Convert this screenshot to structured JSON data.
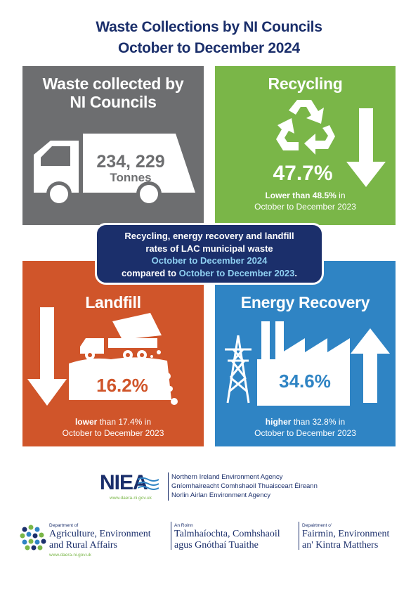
{
  "title": {
    "line1": "Waste Collections by NI Councils",
    "line2": "October to December 2024"
  },
  "colors": {
    "navy": "#1b2f6b",
    "waste": "#6d6e70",
    "recycling": "#7ab648",
    "landfill": "#d0552a",
    "energy": "#2f84c4"
  },
  "waste_tile": {
    "heading_line1": "Waste collected by",
    "heading_line2": "NI Councils",
    "amount": "234, 229",
    "unit": "Tonnes",
    "icon": "truck-icon"
  },
  "recycling_tile": {
    "heading": "Recycling",
    "rate": "47.7%",
    "compare_bold": "Lower than 48.5%",
    "compare_rest": " in",
    "period": "October to December 2023",
    "icon": "recycle-icon",
    "trend": "down"
  },
  "landfill_tile": {
    "heading": "Landfill",
    "rate": "16.2%",
    "compare_bold": "lower",
    "compare_rest": " than 17.4% in",
    "period": "October to December 2023",
    "icon": "dump-truck-icon",
    "trend": "down"
  },
  "energy_tile": {
    "heading": "Energy Recovery",
    "rate": "34.6%",
    "compare_bold": "higher",
    "compare_rest": " than 32.8% in",
    "period": "October to December 2023",
    "icon": "factory-icon",
    "trend": "up"
  },
  "center_box": {
    "line1": "Recycling, energy recovery and landfill",
    "line2": "rates of LAC municipal waste",
    "line3": "October to December 2024",
    "line4a": "compared to ",
    "line4b": "October to December 2023",
    "line4c": "."
  },
  "niea": {
    "logo": "NIEA",
    "url": "www.daera-ni.gov.uk",
    "name_en": "Northern Ireland Environment Agency",
    "name_ga": "Gníomhaireacht Comhshaoil Thuaisceart Éireann",
    "name_us": "Norlin Airlan Environment Agency"
  },
  "daera": {
    "en_small": "Department of",
    "en_line1": "Agriculture, Environment",
    "en_line2": "and Rural Affairs",
    "url": "www.daera-ni.gov.uk",
    "ga_small": "An Roinn",
    "ga_line1": "Talmhaíochta, Comhshaoil",
    "ga_line2": "agus Gnóthaí Tuaithe",
    "us_small": "Depairtment o'",
    "us_line1": "Fairmin, Environment",
    "us_line2": "an' Kintra Matthers"
  }
}
